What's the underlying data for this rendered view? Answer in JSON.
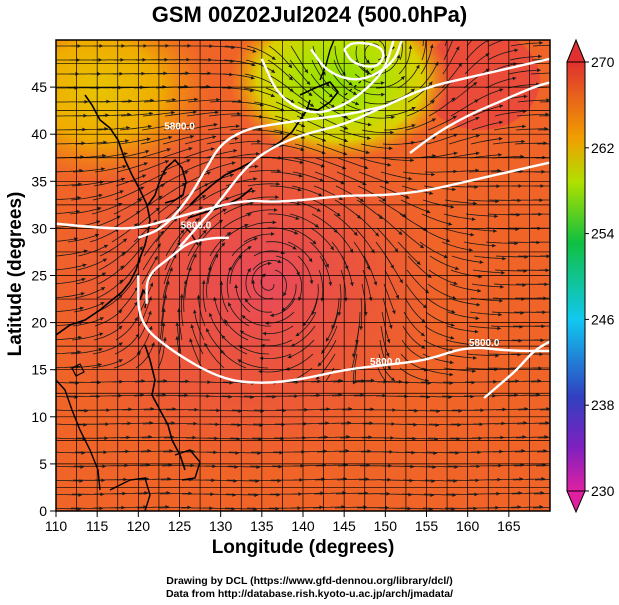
{
  "title": "GSM 00Z02Jul2024 (500.0hPa)",
  "chart_data": {
    "type": "heatmap",
    "title": "GSM 00Z02Jul2024 (500.0hPa)",
    "xlabel": "Longitude (degrees)",
    "ylabel": "Latitude  (degrees)",
    "xlim": [
      110,
      170
    ],
    "ylim": [
      0,
      50
    ],
    "x_ticks": [
      "110",
      "115",
      "120",
      "125",
      "130",
      "135",
      "140",
      "145",
      "150",
      "155",
      "160",
      "165"
    ],
    "y_ticks": [
      "0",
      "5",
      "10",
      "15",
      "20",
      "25",
      "30",
      "35",
      "40",
      "45"
    ],
    "colorbar": {
      "min": 230,
      "max": 270,
      "ticks": [
        "230",
        "238",
        "246",
        "254",
        "262",
        "270"
      ],
      "colors": [
        "#e020a0",
        "#3040c0",
        "#10c8f0",
        "#10c040",
        "#b0e000",
        "#f09000",
        "#e03030"
      ]
    },
    "contour_labels": [
      {
        "text": "5800.0",
        "lon": 150,
        "lat": 15.5
      },
      {
        "text": "5800.0",
        "lon": 162,
        "lat": 17.5
      },
      {
        "text": "5800.0",
        "lon": 127,
        "lat": 30
      },
      {
        "text": "5800.0",
        "lon": 125,
        "lat": 40.5
      }
    ],
    "contours": [
      {
        "name": "",
        "points": [
          [
            110,
            30.5
          ],
          [
            116,
            30
          ],
          [
            120,
            30
          ],
          [
            124,
            31
          ],
          [
            128,
            32
          ],
          [
            133,
            33
          ],
          [
            136,
            32.8
          ],
          [
            140,
            33
          ],
          [
            145,
            33.5
          ],
          [
            150,
            33.5
          ],
          [
            155,
            34
          ],
          [
            160,
            35
          ],
          [
            165,
            36
          ],
          [
            170,
            37
          ]
        ]
      },
      {
        "name": "",
        "points": [
          [
            125,
            28
          ],
          [
            127,
            30
          ],
          [
            130,
            33
          ],
          [
            133,
            36.5
          ],
          [
            136,
            38.5
          ],
          [
            140,
            40
          ],
          [
            145,
            41
          ],
          [
            150,
            43
          ],
          [
            155,
            45
          ],
          [
            160,
            46
          ],
          [
            165,
            47
          ],
          [
            170,
            48
          ]
        ]
      },
      {
        "name": "",
        "points": [
          [
            120,
            29
          ],
          [
            123,
            30
          ],
          [
            126,
            33
          ],
          [
            128,
            36
          ],
          [
            130,
            39
          ],
          [
            133,
            40.5
          ],
          [
            136,
            41
          ],
          [
            140,
            41.5
          ],
          [
            145,
            42
          ],
          [
            150,
            43
          ]
        ]
      },
      {
        "name": "",
        "points": [
          [
            121,
            22
          ],
          [
            121,
            25
          ],
          [
            124,
            27
          ],
          [
            126,
            28.5
          ],
          [
            129,
            29
          ],
          [
            131,
            29
          ]
        ]
      },
      {
        "name": "",
        "points": [
          [
            120,
            25
          ],
          [
            120,
            20
          ],
          [
            124,
            17
          ],
          [
            130,
            14
          ],
          [
            135,
            13.5
          ],
          [
            140,
            14
          ],
          [
            145,
            15
          ],
          [
            150,
            15.5
          ],
          [
            155,
            16
          ],
          [
            160,
            17.5
          ],
          [
            165,
            17
          ],
          [
            170,
            17
          ]
        ]
      },
      {
        "name": "",
        "points": [
          [
            162,
            12
          ],
          [
            164,
            13.5
          ],
          [
            166,
            15
          ],
          [
            168,
            17
          ],
          [
            170,
            18
          ]
        ]
      },
      {
        "name": "",
        "points": [
          [
            135,
            48
          ],
          [
            137,
            44
          ],
          [
            141,
            42
          ],
          [
            145,
            43
          ],
          [
            148,
            45
          ],
          [
            150,
            47
          ],
          [
            151,
            50
          ]
        ]
      },
      {
        "name": "",
        "points": [
          [
            141,
            49
          ],
          [
            143,
            46.5
          ],
          [
            147,
            45.5
          ],
          [
            151,
            47.5
          ],
          [
            152,
            50
          ]
        ]
      },
      {
        "name": "",
        "points": [
          [
            145,
            49
          ],
          [
            146,
            47.5
          ],
          [
            149,
            47
          ],
          [
            150,
            48.5
          ],
          [
            149,
            49.5
          ],
          [
            146,
            49.8
          ],
          [
            145,
            49
          ]
        ]
      },
      {
        "name": "",
        "points": [
          [
            153,
            38
          ],
          [
            156,
            40
          ],
          [
            160,
            42
          ],
          [
            164,
            43.5
          ],
          [
            168,
            45
          ],
          [
            170,
            45.5
          ]
        ]
      }
    ]
  },
  "credits": {
    "line1": "Drawing by DCL (https://www.gfd-dennou.org/library/dcl/)",
    "line2": "Data from http://database.rish.kyoto-u.ac.jp/arch/jmadata/"
  }
}
